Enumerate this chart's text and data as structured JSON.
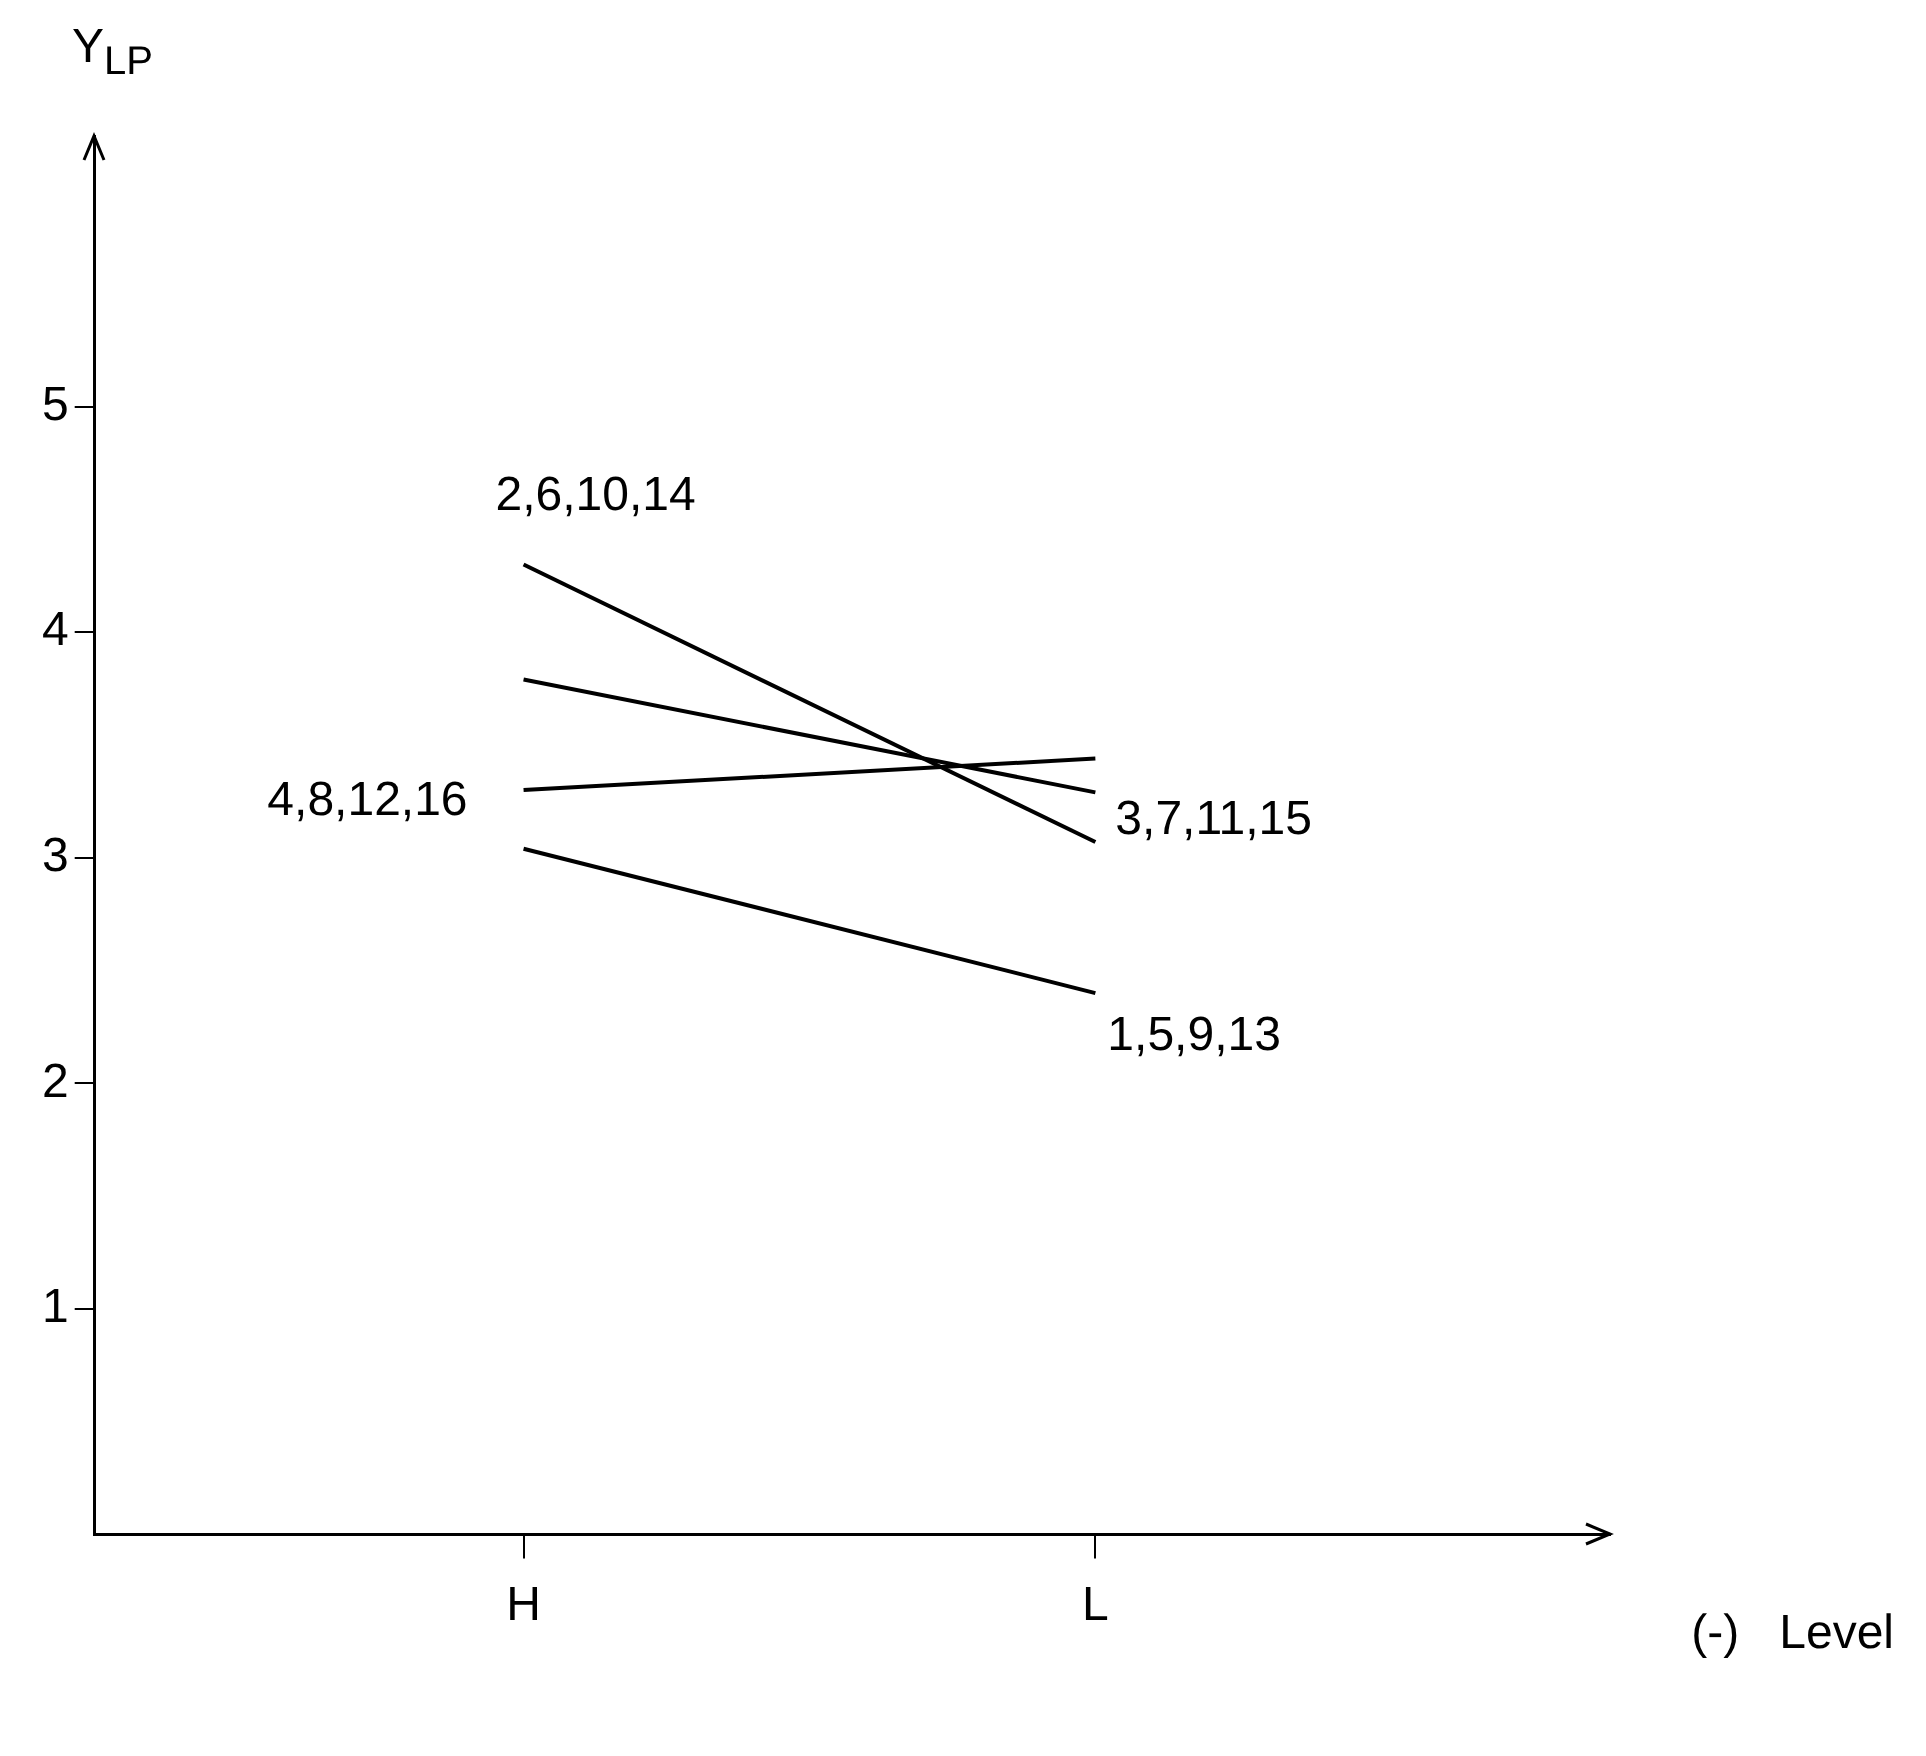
{
  "chart_data": {
    "type": "line",
    "ylabel": "Y$_{LP}$",
    "xlabel": "(-)   Level",
    "categories": [
      "H",
      "L"
    ],
    "series": [
      {
        "name": "2,6,10,14",
        "color": "#000000",
        "values": [
          4.3,
          3.07
        ]
      },
      {
        "name": "3,7,11,15",
        "color": "#000000",
        "values": [
          3.79,
          3.29
        ]
      },
      {
        "name": "4,8,12,16",
        "color": "#000000",
        "values": [
          3.3,
          3.44
        ]
      },
      {
        "name": "1,5,9,13",
        "color": "#000000",
        "values": [
          3.04,
          2.4
        ]
      }
    ],
    "ylim": [
      0,
      6.2
    ],
    "yticks": [
      1,
      2,
      3,
      4,
      5
    ],
    "grid": false,
    "legend": false,
    "marker": "none",
    "line_style": "solid"
  }
}
